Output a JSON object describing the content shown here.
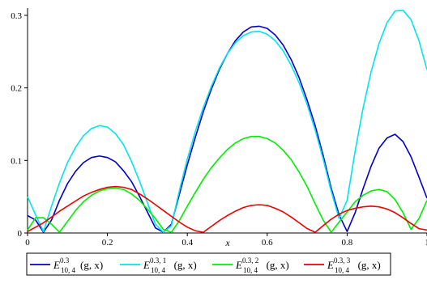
{
  "chart_data": {
    "type": "line",
    "xlabel": "x",
    "ylabel": "",
    "xlim": [
      0,
      1
    ],
    "ylim": [
      0,
      0.31
    ],
    "x_ticks": [
      0,
      0.2,
      0.4,
      0.6,
      0.8,
      1
    ],
    "x_tick_labels": [
      "0",
      "0.2",
      "0.4",
      "0.6",
      "0.8",
      "1"
    ],
    "y_ticks": [
      0,
      0.1,
      0.2,
      0.3
    ],
    "y_tick_labels": [
      "0",
      "0.1",
      "0.2",
      "0.3"
    ],
    "grid": false,
    "legend_position": "bottom",
    "series": [
      {
        "name": "E^{0.3}_{10, 4}(g, x)",
        "legend": {
          "base": "E",
          "sup": "0.3",
          "sub": "10, 4",
          "args": "(g, x)"
        },
        "color": "#0000cc",
        "x": [
          0,
          0.02,
          0.04,
          0.06,
          0.08,
          0.1,
          0.12,
          0.14,
          0.16,
          0.18,
          0.2,
          0.22,
          0.24,
          0.26,
          0.28,
          0.3,
          0.32,
          0.34,
          0.36,
          0.38,
          0.4,
          0.42,
          0.44,
          0.46,
          0.48,
          0.5,
          0.52,
          0.54,
          0.56,
          0.58,
          0.6,
          0.62,
          0.64,
          0.66,
          0.68,
          0.7,
          0.72,
          0.74,
          0.76,
          0.78,
          0.8,
          0.82,
          0.84,
          0.86,
          0.88,
          0.9,
          0.92,
          0.94,
          0.96,
          0.98,
          1
        ],
        "y": [
          0.024,
          0.018,
          0.001,
          0.018,
          0.045,
          0.068,
          0.085,
          0.097,
          0.104,
          0.106,
          0.104,
          0.098,
          0.086,
          0.071,
          0.051,
          0.029,
          0.007,
          0.001,
          0.012,
          0.053,
          0.094,
          0.132,
          0.167,
          0.198,
          0.225,
          0.247,
          0.265,
          0.277,
          0.284,
          0.285,
          0.282,
          0.273,
          0.259,
          0.239,
          0.214,
          0.183,
          0.148,
          0.107,
          0.062,
          0.025,
          0.002,
          0.028,
          0.061,
          0.092,
          0.117,
          0.131,
          0.136,
          0.126,
          0.105,
          0.077,
          0.048
        ]
      },
      {
        "name": "E^{0.3, 1}_{10, 4}(g, x)",
        "legend": {
          "base": "E",
          "sup": "0.3, 1",
          "sub": "10, 4",
          "args": "(g, x)"
        },
        "color": "#00e5ee",
        "x": [
          0,
          0.02,
          0.04,
          0.06,
          0.08,
          0.1,
          0.12,
          0.14,
          0.16,
          0.18,
          0.2,
          0.22,
          0.24,
          0.26,
          0.28,
          0.3,
          0.32,
          0.34,
          0.36,
          0.38,
          0.4,
          0.42,
          0.44,
          0.46,
          0.48,
          0.5,
          0.52,
          0.54,
          0.56,
          0.58,
          0.6,
          0.62,
          0.64,
          0.66,
          0.68,
          0.7,
          0.72,
          0.74,
          0.76,
          0.78,
          0.8,
          0.82,
          0.84,
          0.86,
          0.88,
          0.9,
          0.92,
          0.94,
          0.96,
          0.98,
          1
        ],
        "y": [
          0.05,
          0.025,
          0.002,
          0.037,
          0.069,
          0.097,
          0.118,
          0.134,
          0.144,
          0.148,
          0.146,
          0.137,
          0.122,
          0.099,
          0.072,
          0.042,
          0.012,
          0.001,
          0.01,
          0.058,
          0.102,
          0.14,
          0.173,
          0.202,
          0.227,
          0.247,
          0.262,
          0.272,
          0.277,
          0.278,
          0.274,
          0.265,
          0.251,
          0.231,
          0.207,
          0.177,
          0.142,
          0.102,
          0.058,
          0.02,
          0.045,
          0.113,
          0.172,
          0.222,
          0.261,
          0.29,
          0.306,
          0.307,
          0.294,
          0.265,
          0.225
        ]
      },
      {
        "name": "E^{0.3, 2}_{10, 4}(g, x)",
        "legend": {
          "base": "E",
          "sup": "0.3, 2",
          "sub": "10, 4",
          "args": "(g, x)"
        },
        "color": "#00ee00",
        "x": [
          0,
          0.02,
          0.04,
          0.06,
          0.08,
          0.1,
          0.12,
          0.14,
          0.16,
          0.18,
          0.2,
          0.22,
          0.24,
          0.26,
          0.28,
          0.3,
          0.32,
          0.34,
          0.36,
          0.38,
          0.4,
          0.42,
          0.44,
          0.46,
          0.48,
          0.5,
          0.52,
          0.54,
          0.56,
          0.58,
          0.6,
          0.62,
          0.64,
          0.66,
          0.68,
          0.7,
          0.72,
          0.74,
          0.76,
          0.78,
          0.8,
          0.82,
          0.84,
          0.86,
          0.88,
          0.9,
          0.92,
          0.94,
          0.96,
          0.98,
          1
        ],
        "y": [
          0.004,
          0.021,
          0.021,
          0.012,
          0.001,
          0.016,
          0.031,
          0.043,
          0.052,
          0.058,
          0.061,
          0.062,
          0.06,
          0.054,
          0.045,
          0.033,
          0.02,
          0.005,
          0.001,
          0.017,
          0.037,
          0.056,
          0.074,
          0.09,
          0.103,
          0.115,
          0.124,
          0.13,
          0.133,
          0.133,
          0.13,
          0.124,
          0.114,
          0.101,
          0.084,
          0.064,
          0.04,
          0.018,
          0.001,
          0.015,
          0.029,
          0.043,
          0.052,
          0.058,
          0.06,
          0.057,
          0.046,
          0.028,
          0.005,
          0.02,
          0.045
        ]
      },
      {
        "name": "E^{0.3, 3}_{10, 4}(g, x)",
        "legend": {
          "base": "E",
          "sup": "0.3, 3",
          "sub": "10, 4",
          "args": "(g, x)"
        },
        "color": "#ee0000",
        "x": [
          0,
          0.02,
          0.04,
          0.06,
          0.08,
          0.1,
          0.12,
          0.14,
          0.16,
          0.18,
          0.2,
          0.22,
          0.24,
          0.26,
          0.28,
          0.3,
          0.32,
          0.34,
          0.36,
          0.38,
          0.4,
          0.42,
          0.44,
          0.46,
          0.48,
          0.5,
          0.52,
          0.54,
          0.56,
          0.58,
          0.6,
          0.62,
          0.64,
          0.66,
          0.68,
          0.7,
          0.72,
          0.74,
          0.76,
          0.78,
          0.8,
          0.82,
          0.84,
          0.86,
          0.88,
          0.9,
          0.92,
          0.94,
          0.96,
          0.98,
          1
        ],
        "y": [
          0.002,
          0.008,
          0.014,
          0.022,
          0.03,
          0.037,
          0.044,
          0.051,
          0.056,
          0.06,
          0.063,
          0.064,
          0.063,
          0.06,
          0.054,
          0.047,
          0.039,
          0.031,
          0.023,
          0.015,
          0.008,
          0.003,
          0.001,
          0.009,
          0.017,
          0.024,
          0.03,
          0.035,
          0.038,
          0.039,
          0.038,
          0.034,
          0.029,
          0.022,
          0.014,
          0.006,
          0.001,
          0.01,
          0.019,
          0.026,
          0.031,
          0.034,
          0.036,
          0.037,
          0.036,
          0.033,
          0.028,
          0.021,
          0.013,
          0.006,
          0.004
        ]
      }
    ]
  }
}
